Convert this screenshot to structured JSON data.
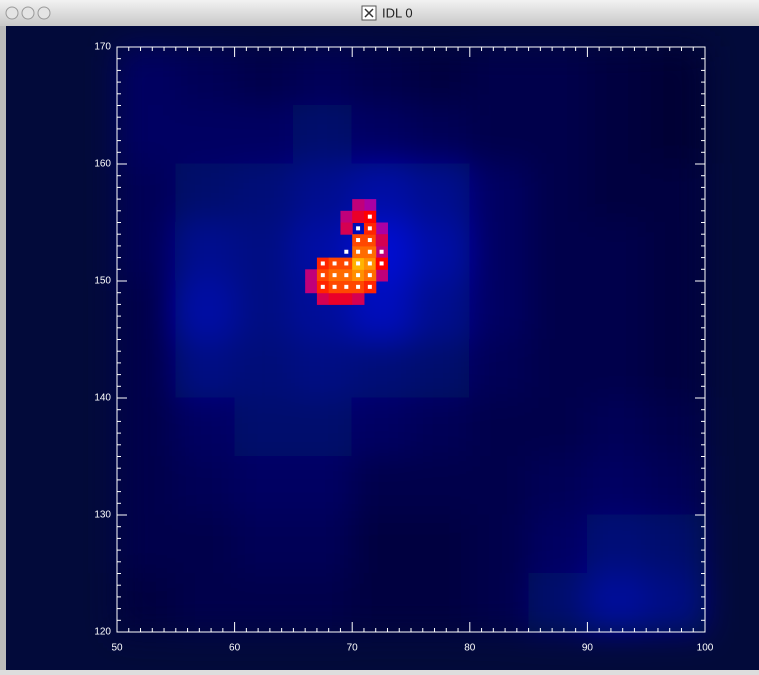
{
  "window": {
    "title": "IDL 0"
  },
  "chart_data": {
    "type": "heatmap",
    "xlim": [
      50,
      100
    ],
    "ylim": [
      120,
      170
    ],
    "xticks": [
      50,
      60,
      70,
      80,
      90,
      100
    ],
    "yticks": [
      120,
      130,
      140,
      150,
      160,
      170
    ],
    "minor_ticks_per_major": 10,
    "z": [
      [
        0.3,
        0.25,
        0.2,
        0.25,
        0.2,
        0.15,
        0.2,
        0.2,
        0.15,
        0.1
      ],
      [
        0.3,
        0.3,
        0.3,
        0.35,
        0.3,
        0.25,
        0.2,
        0.2,
        0.15,
        0.1
      ],
      [
        0.25,
        0.35,
        0.4,
        0.5,
        0.6,
        0.5,
        0.3,
        0.2,
        0.15,
        0.15
      ],
      [
        0.25,
        0.5,
        0.45,
        0.6,
        0.8,
        0.6,
        0.3,
        0.2,
        0.2,
        0.15
      ],
      [
        0.2,
        0.6,
        0.45,
        0.55,
        0.7,
        0.5,
        0.3,
        0.2,
        0.2,
        0.15
      ],
      [
        0.2,
        0.45,
        0.4,
        0.45,
        0.4,
        0.35,
        0.25,
        0.2,
        0.2,
        0.15
      ],
      [
        0.2,
        0.3,
        0.35,
        0.35,
        0.3,
        0.25,
        0.2,
        0.2,
        0.25,
        0.2
      ],
      [
        0.2,
        0.25,
        0.3,
        0.3,
        0.2,
        0.2,
        0.2,
        0.25,
        0.3,
        0.25
      ],
      [
        0.2,
        0.2,
        0.25,
        0.25,
        0.15,
        0.15,
        0.2,
        0.3,
        0.4,
        0.35
      ],
      [
        0.15,
        0.2,
        0.2,
        0.2,
        0.15,
        0.15,
        0.2,
        0.35,
        0.55,
        0.45
      ]
    ],
    "hot_cells": {
      "x": [
        66,
        66,
        67,
        68,
        69,
        70,
        71,
        72,
        72,
        72,
        71,
        70,
        69,
        69,
        70,
        67,
        68,
        69,
        67,
        68,
        69,
        70,
        71,
        67,
        68,
        69,
        70,
        71,
        70,
        71,
        70,
        71,
        70,
        71,
        71,
        72,
        72,
        71
      ],
      "y": [
        150,
        149,
        148,
        148,
        148,
        148,
        149,
        150,
        152,
        154,
        156,
        156,
        155,
        154,
        155,
        151,
        151,
        151,
        150,
        150,
        150,
        150,
        150,
        149,
        149,
        149,
        149,
        149,
        151,
        151,
        152,
        152,
        153,
        153,
        154,
        151,
        153,
        155
      ],
      "values": [
        1.2,
        1.2,
        1.3,
        1.4,
        1.4,
        1.3,
        1.3,
        1.2,
        1.2,
        1.1,
        1.1,
        1.2,
        1.2,
        1.3,
        1.4,
        1.6,
        1.7,
        1.7,
        1.7,
        1.8,
        1.8,
        1.9,
        1.8,
        1.6,
        1.7,
        1.7,
        1.7,
        1.6,
        2.0,
        1.9,
        1.8,
        1.8,
        1.7,
        1.7,
        1.6,
        1.5,
        1.3,
        1.5
      ]
    },
    "marked_points": {
      "x": [
        67,
        68,
        69,
        67,
        68,
        69,
        70,
        71,
        67,
        68,
        69,
        70,
        71,
        69,
        70,
        71,
        72,
        70,
        71,
        72,
        70,
        71,
        70,
        71,
        71
      ],
      "y": [
        151,
        151,
        151,
        150,
        150,
        150,
        150,
        150,
        149,
        149,
        149,
        149,
        149,
        152,
        152,
        152,
        152,
        151,
        151,
        151,
        153,
        153,
        154,
        154,
        155
      ]
    }
  }
}
